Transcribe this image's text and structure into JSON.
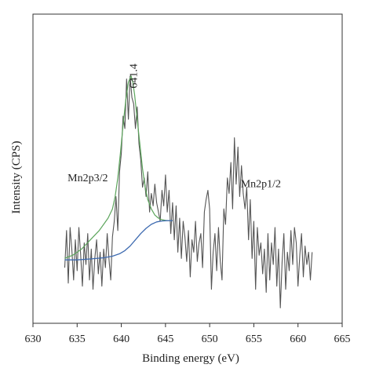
{
  "chart_data": {
    "type": "line",
    "title": "",
    "xlabel": "Binding energy (eV)",
    "ylabel": "Intensity (CPS)",
    "xlim": [
      630,
      665
    ],
    "ylim": [
      0,
      100
    ],
    "x_ticks": [
      630,
      635,
      640,
      645,
      650,
      655,
      660,
      665
    ],
    "grid": false,
    "legend": "none",
    "annotations": [
      {
        "text": "641.4",
        "x": 641.4,
        "y": 76,
        "rotated": true
      },
      {
        "text": "Mn2p3/2",
        "x": 636.2,
        "y": 46
      },
      {
        "text": "Mn2p1/2",
        "x": 655.8,
        "y": 44
      }
    ],
    "series": [
      {
        "color": "#555555",
        "x": [
          633.6,
          633.8,
          634.0,
          634.2,
          634.4,
          634.6,
          634.8,
          635.0,
          635.2,
          635.4,
          635.6,
          635.8,
          636.0,
          636.2,
          636.4,
          636.6,
          636.8,
          637.0,
          637.2,
          637.4,
          637.6,
          637.8,
          638.0,
          638.2,
          638.4,
          638.6,
          638.8,
          639.0,
          639.2,
          639.4,
          639.6,
          639.8,
          640.0,
          640.2,
          640.4,
          640.6,
          640.8,
          641.0,
          641.2,
          641.4,
          641.6,
          641.8,
          642.0,
          642.2,
          642.4,
          642.6,
          642.8,
          643.0,
          643.2,
          643.4,
          643.6,
          643.8,
          644.0,
          644.2,
          644.4,
          644.6,
          644.8,
          645.0,
          645.2,
          645.4,
          645.6,
          645.8,
          646.0,
          646.2,
          646.4,
          646.6,
          646.8,
          647.0,
          647.2,
          647.4,
          647.6,
          647.8,
          648.0,
          648.2,
          648.4,
          648.6,
          648.8,
          649.0,
          649.2,
          649.4,
          649.6,
          649.8,
          650.0,
          650.2,
          650.4,
          650.6,
          650.8,
          651.0,
          651.2,
          651.4,
          651.6,
          651.8,
          652.0,
          652.2,
          652.4,
          652.6,
          652.8,
          653.0,
          653.2,
          653.4,
          653.6,
          653.8,
          654.0,
          654.2,
          654.4,
          654.6,
          654.8,
          655.0,
          655.2,
          655.4,
          655.6,
          655.8,
          656.0,
          656.2,
          656.4,
          656.6,
          656.8,
          657.0,
          657.2,
          657.4,
          657.6,
          657.8,
          658.0,
          658.2,
          658.4,
          658.6,
          658.8,
          659.0,
          659.2,
          659.4,
          659.6,
          659.8,
          660.0,
          660.2,
          660.4,
          660.6,
          660.8,
          661.0,
          661.2,
          661.4,
          661.6
        ],
        "y": [
          18,
          30,
          13,
          31,
          24,
          14,
          27,
          17,
          31,
          22,
          12,
          26,
          19,
          29,
          14,
          24,
          11,
          21,
          27,
          16,
          23,
          12,
          24,
          18,
          29,
          21,
          14,
          28,
          33,
          41,
          30,
          49,
          55,
          67,
          63,
          79,
          66,
          80,
          73,
          71,
          63,
          70,
          58,
          53,
          44,
          47,
          41,
          49,
          36,
          42,
          38,
          45,
          39,
          36,
          33,
          43,
          38,
          48,
          36,
          43,
          29,
          39,
          27,
          38,
          23,
          34,
          21,
          33,
          28,
          20,
          30,
          15,
          27,
          23,
          33,
          20,
          26,
          29,
          18,
          36,
          40,
          43,
          37,
          11,
          23,
          29,
          17,
          31,
          20,
          14,
          37,
          32,
          47,
          42,
          52,
          37,
          60,
          45,
          57,
          41,
          51,
          42,
          37,
          44,
          27,
          40,
          21,
          33,
          11,
          31,
          22,
          26,
          16,
          24,
          10,
          29,
          14,
          26,
          19,
          31,
          12,
          24,
          5,
          20,
          29,
          11,
          23,
          17,
          30,
          19,
          31,
          26,
          12,
          22,
          29,
          15,
          25,
          19,
          23,
          14,
          23
        ]
      },
      {
        "color": "#5ca55c",
        "x": [
          633.6,
          634.0,
          634.5,
          635.0,
          635.5,
          636.0,
          636.5,
          637.0,
          637.5,
          638.0,
          638.5,
          639.0,
          639.3,
          639.6,
          639.9,
          640.2,
          640.5,
          640.8,
          641.1,
          641.3,
          641.5,
          641.8,
          642.1,
          642.4,
          642.7,
          643.0,
          643.4,
          643.8,
          644.2,
          644.6,
          645.0,
          645.4,
          645.8
        ],
        "y": [
          21,
          21.5,
          22,
          23,
          24,
          25.5,
          27,
          28.5,
          30,
          32,
          34,
          37,
          41,
          47,
          55,
          64,
          72,
          78,
          80,
          78,
          74,
          66,
          58,
          50,
          44,
          40,
          37,
          35,
          34,
          33.5,
          33.3,
          33.2,
          33.2
        ]
      },
      {
        "color": "#3d6ab0",
        "x": [
          633.6,
          635.0,
          636.5,
          638.0,
          639.0,
          639.8,
          640.4,
          641.0,
          641.6,
          642.2,
          642.8,
          643.4,
          644.0,
          644.6,
          645.2,
          645.8
        ],
        "y": [
          20.5,
          20.5,
          20.8,
          21.2,
          21.7,
          22.5,
          23.5,
          25,
          27,
          29,
          30.7,
          32,
          32.8,
          33.1,
          33.2,
          33.2
        ]
      }
    ]
  }
}
